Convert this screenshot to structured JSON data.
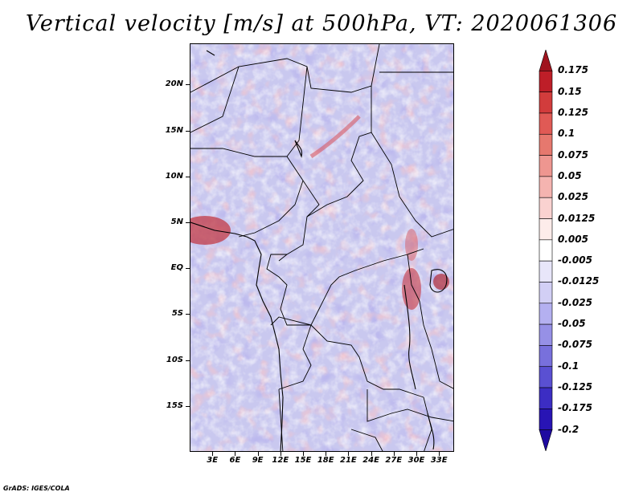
{
  "title": "Vertical velocity [m/s] at 500hPa, VT: 2020061306",
  "credit": "GrADS: IGES/COLA",
  "lat_labels": [
    "20N",
    "15N",
    "10N",
    "5N",
    "EQ",
    "5S",
    "10S",
    "15S"
  ],
  "lat_values": [
    20,
    15,
    10,
    5,
    0,
    -5,
    -10,
    -15
  ],
  "lon_labels": [
    "3E",
    "6E",
    "9E",
    "12E",
    "15E",
    "18E",
    "21E",
    "24E",
    "27E",
    "30E",
    "33E"
  ],
  "lon_values": [
    3,
    6,
    9,
    12,
    15,
    18,
    21,
    24,
    27,
    30,
    33
  ],
  "colorbar": {
    "labels": [
      "0.175",
      "0.15",
      "0.125",
      "0.1",
      "0.075",
      "0.05",
      "0.025",
      "0.0125",
      "0.005",
      "-0.005",
      "-0.0125",
      "-0.025",
      "-0.05",
      "-0.075",
      "-0.1",
      "-0.125",
      "-0.175",
      "-0.2"
    ],
    "colors": [
      "#a0141e",
      "#be1e28",
      "#d23c3c",
      "#e05a55",
      "#e6786e",
      "#ee9690",
      "#f5b4b0",
      "#fad2d0",
      "#fdecea",
      "#ffffff",
      "#e8e6fa",
      "#d2cff5",
      "#b4b0f0",
      "#9690e6",
      "#7870dc",
      "#5a50d2",
      "#3c2dc3",
      "#2814b4",
      "#1e0aa0"
    ]
  },
  "map": {
    "lat_range": [
      -20,
      24.5
    ],
    "lon_range": [
      0,
      35
    ],
    "palette": {
      "land_blue": "#c9c8ef",
      "white": "#ffffff",
      "pink": "#f3b9bd",
      "red": "#e06060",
      "blue": "#7d78dc"
    }
  }
}
